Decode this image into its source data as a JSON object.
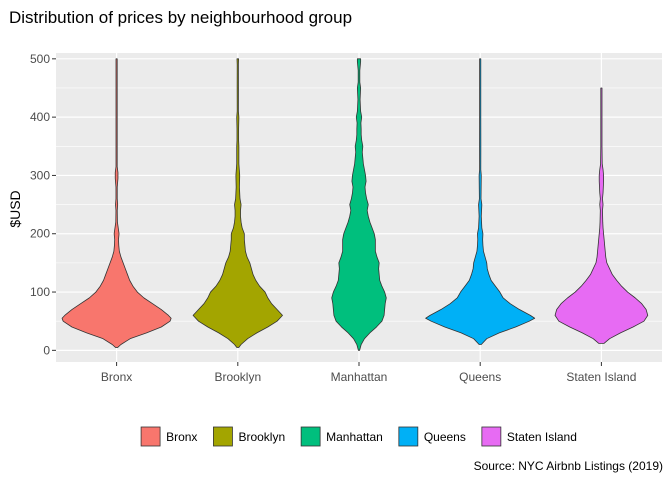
{
  "chart_data": {
    "type": "violin",
    "title": "Distribution of prices by neighbourhood group",
    "xlabel": "",
    "ylabel": "$USD",
    "ylim": [
      -20,
      510
    ],
    "yticks": [
      0,
      100,
      200,
      300,
      400,
      500
    ],
    "caption": "Source: NYC Airbnb Listings (2019)",
    "legend_position": "bottom",
    "categories": [
      "Bronx",
      "Brooklyn",
      "Manhattan",
      "Queens",
      "Staten Island"
    ],
    "series": [
      {
        "name": "Bronx",
        "color": "#F8766D",
        "profile": [
          [
            5,
            0.02
          ],
          [
            10,
            0.08
          ],
          [
            20,
            0.25
          ],
          [
            30,
            0.55
          ],
          [
            40,
            0.82
          ],
          [
            50,
            0.98
          ],
          [
            55,
            1.0
          ],
          [
            60,
            0.95
          ],
          [
            70,
            0.82
          ],
          [
            80,
            0.66
          ],
          [
            90,
            0.5
          ],
          [
            100,
            0.38
          ],
          [
            110,
            0.3
          ],
          [
            120,
            0.24
          ],
          [
            130,
            0.2
          ],
          [
            140,
            0.16
          ],
          [
            150,
            0.12
          ],
          [
            160,
            0.08
          ],
          [
            170,
            0.05
          ],
          [
            180,
            0.04
          ],
          [
            190,
            0.035
          ],
          [
            200,
            0.045
          ],
          [
            210,
            0.03
          ],
          [
            220,
            0.015
          ],
          [
            240,
            0.012
          ],
          [
            250,
            0.02
          ],
          [
            260,
            0.012
          ],
          [
            280,
            0.012
          ],
          [
            295,
            0.025
          ],
          [
            305,
            0.025
          ],
          [
            315,
            0.01
          ],
          [
            400,
            0.008
          ],
          [
            500,
            0.005
          ]
        ]
      },
      {
        "name": "Brooklyn",
        "color": "#A3A500",
        "profile": [
          [
            5,
            0.02
          ],
          [
            10,
            0.06
          ],
          [
            20,
            0.18
          ],
          [
            30,
            0.35
          ],
          [
            40,
            0.55
          ],
          [
            50,
            0.72
          ],
          [
            60,
            0.82
          ],
          [
            70,
            0.72
          ],
          [
            80,
            0.62
          ],
          [
            90,
            0.55
          ],
          [
            100,
            0.5
          ],
          [
            110,
            0.4
          ],
          [
            120,
            0.33
          ],
          [
            130,
            0.28
          ],
          [
            140,
            0.25
          ],
          [
            150,
            0.22
          ],
          [
            160,
            0.17
          ],
          [
            170,
            0.14
          ],
          [
            180,
            0.13
          ],
          [
            190,
            0.12
          ],
          [
            200,
            0.12
          ],
          [
            210,
            0.08
          ],
          [
            220,
            0.06
          ],
          [
            230,
            0.05
          ],
          [
            240,
            0.05
          ],
          [
            250,
            0.06
          ],
          [
            260,
            0.04
          ],
          [
            280,
            0.03
          ],
          [
            300,
            0.035
          ],
          [
            320,
            0.02
          ],
          [
            350,
            0.02
          ],
          [
            360,
            0.015
          ],
          [
            380,
            0.015
          ],
          [
            400,
            0.02
          ],
          [
            410,
            0.01
          ],
          [
            450,
            0.012
          ],
          [
            490,
            0.01
          ],
          [
            500,
            0.015
          ]
        ]
      },
      {
        "name": "Manhattan",
        "color": "#00BF7D",
        "profile": [
          [
            0,
            0.01
          ],
          [
            10,
            0.04
          ],
          [
            20,
            0.1
          ],
          [
            30,
            0.2
          ],
          [
            40,
            0.32
          ],
          [
            50,
            0.42
          ],
          [
            60,
            0.46
          ],
          [
            70,
            0.47
          ],
          [
            80,
            0.48
          ],
          [
            90,
            0.5
          ],
          [
            100,
            0.47
          ],
          [
            110,
            0.42
          ],
          [
            120,
            0.38
          ],
          [
            130,
            0.37
          ],
          [
            140,
            0.36
          ],
          [
            150,
            0.37
          ],
          [
            160,
            0.33
          ],
          [
            170,
            0.3
          ],
          [
            180,
            0.3
          ],
          [
            190,
            0.3
          ],
          [
            200,
            0.28
          ],
          [
            210,
            0.24
          ],
          [
            220,
            0.2
          ],
          [
            230,
            0.17
          ],
          [
            240,
            0.15
          ],
          [
            250,
            0.17
          ],
          [
            260,
            0.14
          ],
          [
            270,
            0.12
          ],
          [
            280,
            0.11
          ],
          [
            290,
            0.13
          ],
          [
            300,
            0.12
          ],
          [
            310,
            0.1
          ],
          [
            320,
            0.08
          ],
          [
            330,
            0.07
          ],
          [
            340,
            0.06
          ],
          [
            350,
            0.07
          ],
          [
            360,
            0.05
          ],
          [
            370,
            0.04
          ],
          [
            380,
            0.04
          ],
          [
            390,
            0.035
          ],
          [
            400,
            0.05
          ],
          [
            410,
            0.03
          ],
          [
            420,
            0.025
          ],
          [
            430,
            0.02
          ],
          [
            450,
            0.03
          ],
          [
            460,
            0.015
          ],
          [
            480,
            0.015
          ],
          [
            495,
            0.03
          ],
          [
            500,
            0.03
          ]
        ]
      },
      {
        "name": "Queens",
        "color": "#00B0F6",
        "profile": [
          [
            10,
            0.02
          ],
          [
            20,
            0.12
          ],
          [
            30,
            0.35
          ],
          [
            40,
            0.65
          ],
          [
            50,
            0.9
          ],
          [
            55,
            1.0
          ],
          [
            60,
            0.92
          ],
          [
            70,
            0.72
          ],
          [
            80,
            0.55
          ],
          [
            90,
            0.42
          ],
          [
            100,
            0.36
          ],
          [
            110,
            0.28
          ],
          [
            120,
            0.2
          ],
          [
            130,
            0.16
          ],
          [
            140,
            0.13
          ],
          [
            150,
            0.12
          ],
          [
            160,
            0.09
          ],
          [
            170,
            0.06
          ],
          [
            180,
            0.05
          ],
          [
            190,
            0.045
          ],
          [
            200,
            0.05
          ],
          [
            210,
            0.03
          ],
          [
            220,
            0.025
          ],
          [
            230,
            0.02
          ],
          [
            250,
            0.03
          ],
          [
            260,
            0.015
          ],
          [
            300,
            0.02
          ],
          [
            310,
            0.01
          ],
          [
            350,
            0.012
          ],
          [
            400,
            0.01
          ],
          [
            450,
            0.01
          ],
          [
            500,
            0.008
          ]
        ]
      },
      {
        "name": "Staten Island",
        "color": "#E76BF3",
        "profile": [
          [
            12,
            0.05
          ],
          [
            20,
            0.15
          ],
          [
            30,
            0.35
          ],
          [
            40,
            0.58
          ],
          [
            50,
            0.78
          ],
          [
            60,
            0.85
          ],
          [
            70,
            0.82
          ],
          [
            80,
            0.74
          ],
          [
            90,
            0.62
          ],
          [
            100,
            0.48
          ],
          [
            110,
            0.37
          ],
          [
            120,
            0.28
          ],
          [
            130,
            0.2
          ],
          [
            140,
            0.15
          ],
          [
            150,
            0.1
          ],
          [
            160,
            0.08
          ],
          [
            170,
            0.07
          ],
          [
            180,
            0.06
          ],
          [
            190,
            0.05
          ],
          [
            200,
            0.04
          ],
          [
            210,
            0.03
          ],
          [
            220,
            0.025
          ],
          [
            240,
            0.02
          ],
          [
            250,
            0.03
          ],
          [
            260,
            0.02
          ],
          [
            270,
            0.03
          ],
          [
            290,
            0.04
          ],
          [
            300,
            0.04
          ],
          [
            310,
            0.03
          ],
          [
            320,
            0.015
          ],
          [
            350,
            0.01
          ],
          [
            400,
            0.008
          ],
          [
            440,
            0.008
          ],
          [
            450,
            0.005
          ]
        ]
      }
    ]
  }
}
